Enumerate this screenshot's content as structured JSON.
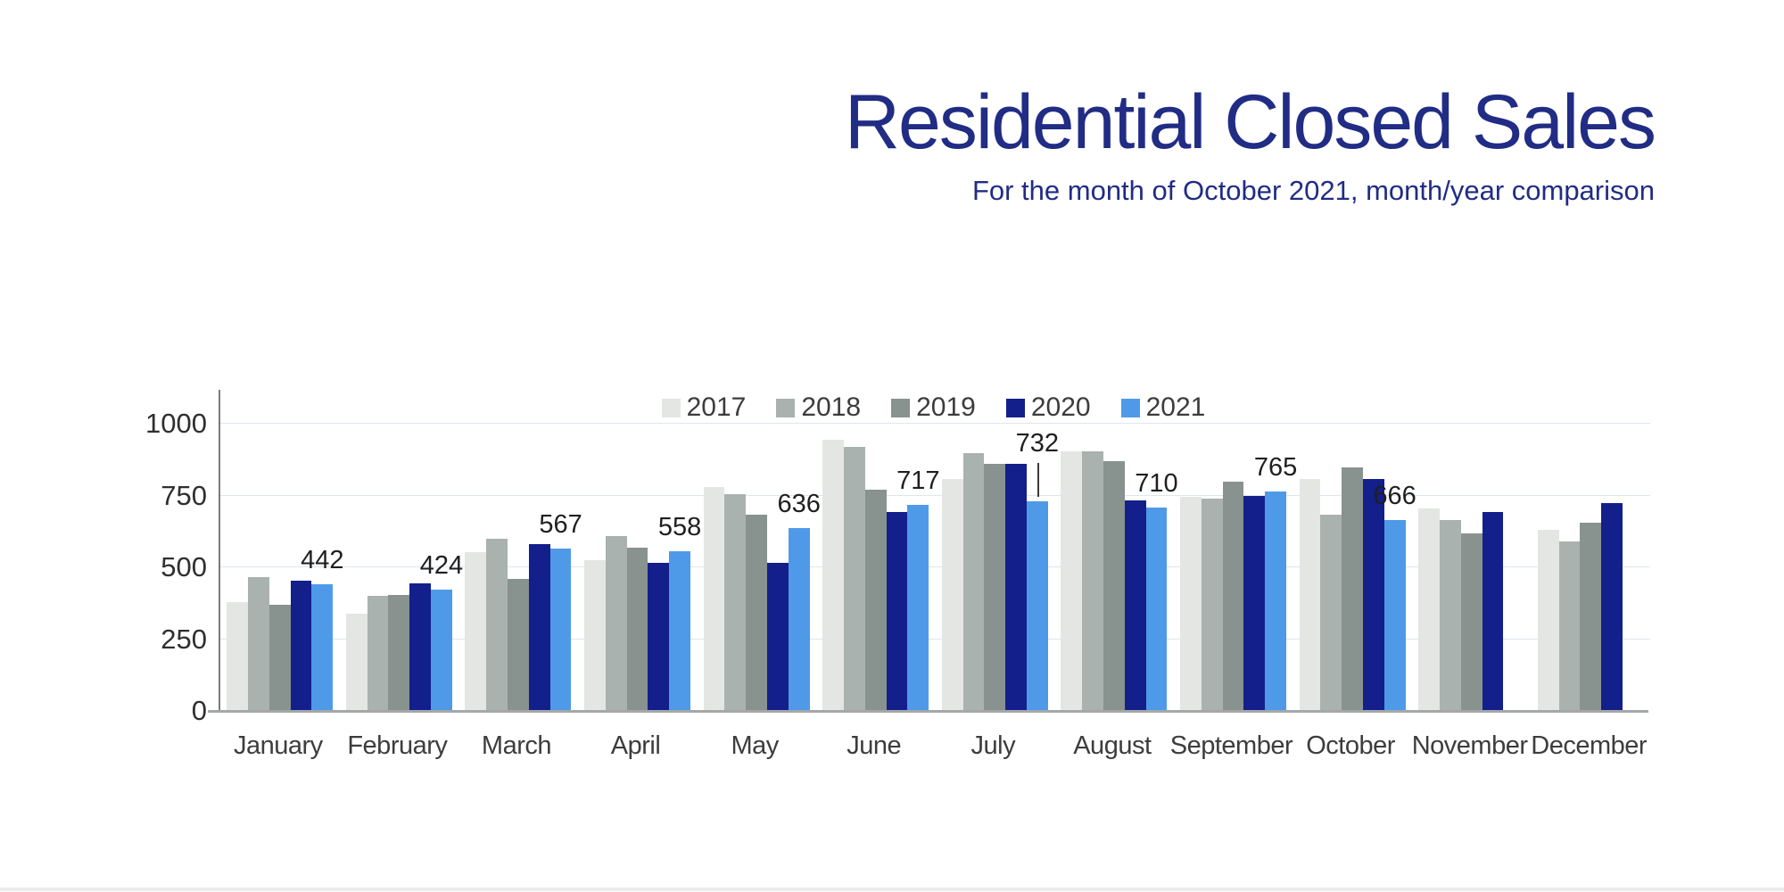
{
  "title": "Residential Closed Sales",
  "subtitle": "For the month of October 2021, month/year comparison",
  "title_color": "#212c85",
  "chart_data": {
    "type": "bar",
    "title": "Residential Closed Sales",
    "subtitle": "For the month of October 2021, month/year comparison",
    "categories": [
      "January",
      "February",
      "March",
      "April",
      "May",
      "June",
      "July",
      "August",
      "September",
      "October",
      "November",
      "December"
    ],
    "series": [
      {
        "name": "2017",
        "color": "#e3e6e3",
        "values": [
          380,
          340,
          555,
          525,
          780,
          945,
          810,
          905,
          745,
          810,
          705,
          630
        ]
      },
      {
        "name": "2018",
        "color": "#a9b2ae",
        "values": [
          465,
          400,
          600,
          610,
          755,
          920,
          900,
          905,
          740,
          685,
          665,
          590
        ]
      },
      {
        "name": "2019",
        "color": "#88928e",
        "values": [
          370,
          405,
          460,
          570,
          685,
          770,
          860,
          870,
          800,
          850,
          620,
          655
        ]
      },
      {
        "name": "2020",
        "color": "#131f8b",
        "values": [
          455,
          445,
          580,
          515,
          515,
          695,
          860,
          735,
          750,
          810,
          695,
          725
        ]
      },
      {
        "name": "2021",
        "color": "#4f9ae8",
        "values": [
          442,
          424,
          567,
          558,
          636,
          717,
          732,
          710,
          765,
          666,
          null,
          null
        ]
      }
    ],
    "data_labels": {
      "series": "2021",
      "values": [
        "442",
        "424",
        "567",
        "558",
        "636",
        "717",
        "732",
        "710",
        "765",
        "666",
        "",
        ""
      ],
      "leader_line_month_index": 6
    },
    "y_axis": {
      "ticks": [
        "0",
        "250",
        "500",
        "750",
        "1000"
      ],
      "tick_values": [
        0,
        250,
        500,
        750,
        1000
      ],
      "max": 1000
    },
    "xlabel": "",
    "ylabel": "",
    "grid": true,
    "legend_position": "top-center"
  }
}
